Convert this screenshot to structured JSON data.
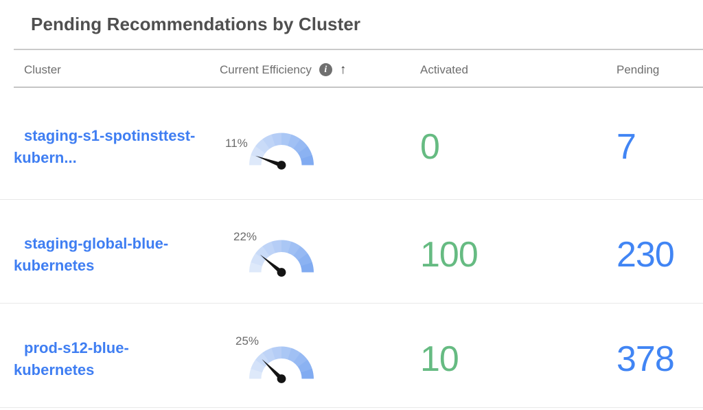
{
  "title": "Pending Recommendations by Cluster",
  "columns": {
    "cluster": "Cluster",
    "efficiency": "Current Efficiency",
    "activated": "Activated",
    "pending": "Pending"
  },
  "sort": {
    "column": "efficiency",
    "arrow": "↑",
    "direction": "asc"
  },
  "info_icon_glyph": "i",
  "rows": [
    {
      "cluster_line1": "staging-s1-spotinsttest-",
      "cluster_line2": "kubern...",
      "efficiency_pct": 11,
      "efficiency_label": "11%",
      "activated": "0",
      "pending": "7"
    },
    {
      "cluster_line1": "staging-global-blue-",
      "cluster_line2": "kubernetes",
      "efficiency_pct": 22,
      "efficiency_label": "22%",
      "activated": "100",
      "pending": "230"
    },
    {
      "cluster_line1": "prod-s12-blue-",
      "cluster_line2": "kubernetes",
      "efficiency_pct": 25,
      "efficiency_label": "25%",
      "activated": "10",
      "pending": "378"
    }
  ],
  "chart_data": [
    {
      "type": "gauge",
      "title": "Current Efficiency",
      "value": 11,
      "label": "11%",
      "range": [
        0,
        100
      ]
    },
    {
      "type": "gauge",
      "title": "Current Efficiency",
      "value": 22,
      "label": "22%",
      "range": [
        0,
        100
      ]
    },
    {
      "type": "gauge",
      "title": "Current Efficiency",
      "value": 25,
      "label": "25%",
      "range": [
        0,
        100
      ]
    }
  ],
  "colors": {
    "title_text": "#4f4f4f",
    "header_text": "#6e6e6e",
    "link_blue": "#3f7ef2",
    "pending_blue": "#4185f4",
    "activated_green": "#66bb82",
    "gauge_start": "#dee9fa",
    "gauge_end": "#81abf1",
    "needle": "#141414",
    "divider": "#cacaca",
    "row_separator": "#e8e8e8"
  }
}
